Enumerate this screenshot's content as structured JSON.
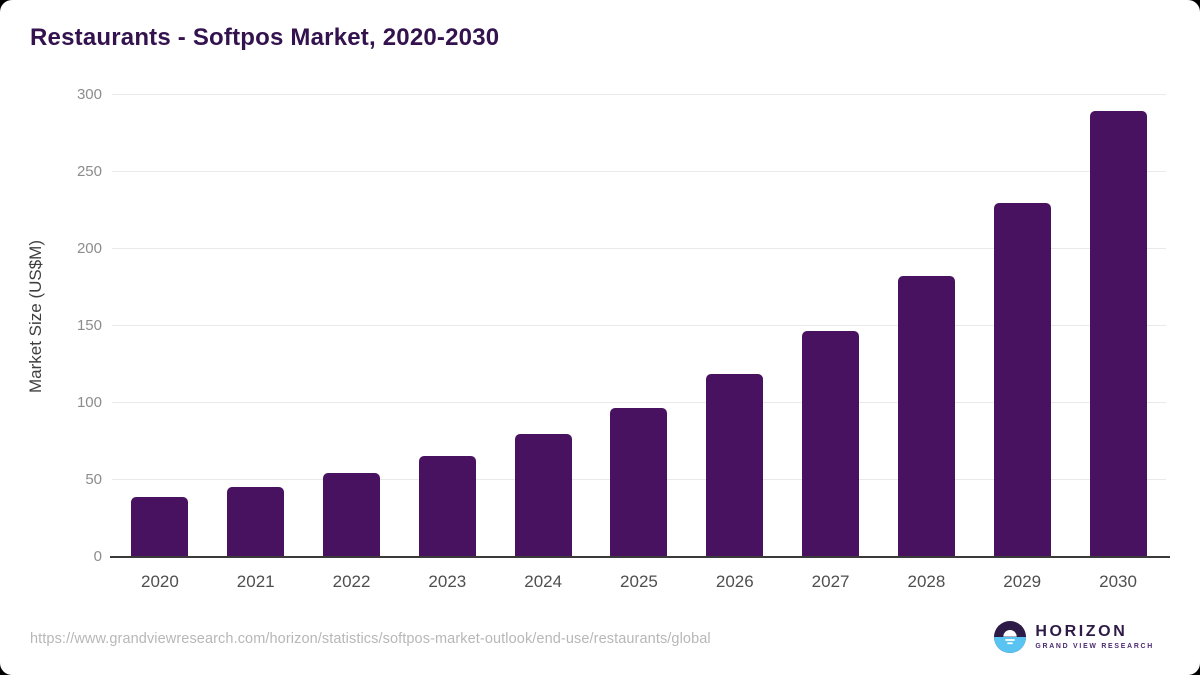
{
  "title": "Restaurants - Softpos Market, 2020-2030",
  "source_url": "https://www.grandviewresearch.com/horizon/statistics/softpos-market-outlook/end-use/restaurants/global",
  "logo": {
    "name": "HORIZON",
    "subtitle": "GRAND VIEW RESEARCH"
  },
  "colors": {
    "bar": "#481260",
    "title": "#33124e",
    "gridline": "#e9e9e9",
    "axis_line": "#3a3a3a",
    "y_tick_label": "#8c8c8c",
    "x_tick_label": "#4f4f4f",
    "url_text": "#b7b7b7",
    "logo_dark_purple": "#2e1a47",
    "logo_light_blue": "#59c3f2"
  },
  "chart_data": {
    "type": "bar",
    "title": "Restaurants - Softpos Market, 2020-2030",
    "categories": [
      "2020",
      "2021",
      "2022",
      "2023",
      "2024",
      "2025",
      "2026",
      "2027",
      "2028",
      "2029",
      "2030"
    ],
    "values": [
      38,
      45,
      54,
      65,
      79,
      96,
      118,
      146,
      182,
      229,
      289
    ],
    "xlabel": "",
    "ylabel": "Market Size (US$M)",
    "ylim": [
      0,
      300
    ],
    "yticks": [
      0,
      50,
      100,
      150,
      200,
      250,
      300
    ],
    "grid": true,
    "legend": false,
    "bar_color": "#481260"
  }
}
